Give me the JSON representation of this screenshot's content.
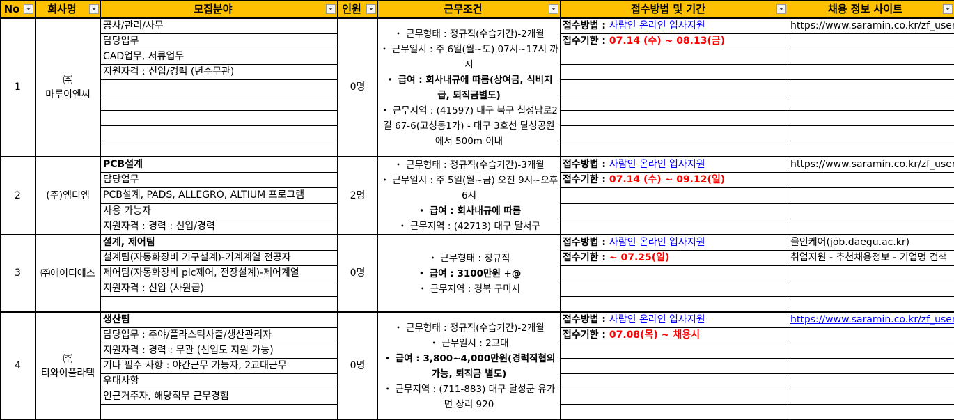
{
  "header": [
    "No",
    "회사명",
    "모집분야",
    "인원",
    "근무조건",
    "접수방법 및 기간",
    "채용 정보 사이트"
  ],
  "colors": {
    "header_bg": "#FFC000",
    "method": "#0000FF",
    "deadline": "#FF0000"
  },
  "rows": [
    {
      "no": "1",
      "company": "㈜\n마루이엔씨",
      "count": "0명",
      "fields": [
        {
          "t": "공사/관리/사무"
        },
        {
          "t": "담당업무"
        },
        {
          "t": "CAD업무, 서류업무"
        },
        {
          "t": "지원자격 : 신입/경력 (년수무관)"
        },
        {
          "t": ""
        },
        {
          "t": ""
        },
        {
          "t": ""
        },
        {
          "t": ""
        },
        {
          "t": ""
        }
      ],
      "conditions": [
        {
          "t": "・ 근무형태 : 정규직(수습기간)-2개월"
        },
        {
          "t": "・ 근무일시 : 주 6일(월~토) 07시~17시 까지"
        },
        {
          "t": "・ 급여 : 회사내규에 따름(상여금, 식비지급, 퇴직금별도)",
          "b": true
        },
        {
          "t": "・ 근무지역 : (41597) 대구 북구 칠성남로2길 67-6(고성동1가) - 대구 3호선 달성공원 에서 500m 이내"
        }
      ],
      "apply": {
        "method_label": "접수방법 : ",
        "method": "사람인 온라인 입사지원",
        "deadline_label": "접수기한 : ",
        "deadline": " 07.14 (수) ~ 08.13(금)"
      },
      "sites": [
        {
          "t": "https://www.saramin.co.kr/zf_user/jobs/relay/view"
        }
      ]
    },
    {
      "no": "2",
      "company": "(주)엠디엠",
      "count": "2명",
      "fields": [
        {
          "t": "PCB설계",
          "b": true
        },
        {
          "t": "담당업무"
        },
        {
          "t": "PCB설계, PADS, ALLEGRO, ALTIUM 프로그램"
        },
        {
          "t": "사용 가능자"
        },
        {
          "t": "지원자격 : 경력 : 신입/경력"
        }
      ],
      "conditions": [
        {
          "t": "・ 근무형태 : 정규직(수습기간)-3개월"
        },
        {
          "t": "・ 근무일시 : 주 5일(월~금) 오전 9시~오후 6시"
        },
        {
          "t": "・ 급여 : 회사내규에 따름",
          "b": true
        },
        {
          "t": "・ 근무지역 : (42713) 대구 달서구"
        }
      ],
      "apply": {
        "method_label": "접수방법 : ",
        "method": "사람인 온라인 입사지원",
        "deadline_label": "접수기한 : ",
        "deadline": " 07.14 (수) ~ 09.12(일)"
      },
      "sites": [
        {
          "t": "https://www.saramin.co.kr/zf_user/jobs/relay/view"
        }
      ]
    },
    {
      "no": "3",
      "company": "㈜에이티에스",
      "count": "0명",
      "fields": [
        {
          "t": "설계, 제어팀",
          "b": true
        },
        {
          "t": "설계팀(자동화장비 기구설계)-기계계열 전공자"
        },
        {
          "t": "제어팀(자동화장비 plc제어, 전장설계)-제어계열"
        },
        {
          "t": "지원자격 : 신입 (사원급)"
        },
        {
          "t": ""
        }
      ],
      "conditions": [
        {
          "t": "・ 근무형태 : 정규직"
        },
        {
          "t": "・ 급여 : 3100만원 +@",
          "b": true
        },
        {
          "t": "・ 근무지역 : 경북 구미시"
        }
      ],
      "apply": {
        "method_label": "접수방법 : ",
        "method": "사람인 온라인 입사지원",
        "deadline_label": "접수기한 : ",
        "deadline": "~ 07.25(일)"
      },
      "sites": [
        {
          "t": "올인케어(job.daegu.ac.kr)"
        },
        {
          "t": "취업지원 - 추천채용정보 - 기업명 검색"
        }
      ]
    },
    {
      "no": "4",
      "company": "㈜\n티와이플라텍",
      "count": "0명",
      "fields": [
        {
          "t": "생산팀",
          "b": true
        },
        {
          "t": "담당업무 : 주야/플라스틱사출/생산관리자"
        },
        {
          "t": "지원자격 : 경력 : 무관 (신입도 지원 가능)"
        },
        {
          "t": "기타 필수 사항 : 야간근무 가능자, 2교대근무"
        },
        {
          "t": "우대사항"
        },
        {
          "t": "인근거주자, 해당직무 근무경험"
        },
        {
          "t": ""
        }
      ],
      "conditions": [
        {
          "t": "・ 근무형태 : 정규직(수습기간)-2개월"
        },
        {
          "t": "・ 근무일시 : 2교대"
        },
        {
          "t": "・ 급여 : 3,800~4,000만원(경력직협의가능, 퇴직금 별도)",
          "b": true
        },
        {
          "t": "・ 근무지역 : (711-883) 대구 달성군 유가면 상리 920"
        }
      ],
      "apply": {
        "method_label": "접수방법 : ",
        "method": "사람인 온라인 입사지원",
        "deadline_label": "접수기한 : ",
        "deadline": "07.08(목) ~ 채용시"
      },
      "sites": [
        {
          "t": "https://www.saramin.co.kr/zf_user/jobs/relay/view",
          "link": true
        }
      ]
    }
  ]
}
